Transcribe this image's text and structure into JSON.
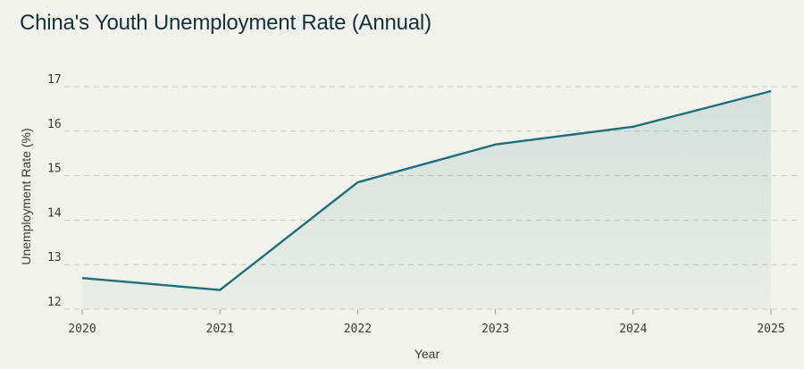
{
  "chart_data": {
    "type": "area",
    "title": "China's Youth Unemployment Rate (Annual)",
    "xlabel": "Year",
    "ylabel": "Unemployment Rate (%)",
    "x": [
      "2020",
      "2021",
      "2022",
      "2023",
      "2024",
      "2025"
    ],
    "values": [
      12.7,
      12.43,
      14.85,
      15.7,
      16.1,
      16.9
    ],
    "ylim": [
      11.8,
      17.2
    ],
    "yticks": [
      12,
      13,
      14,
      15,
      16,
      17
    ],
    "grid": true,
    "line_color": "#1c6f7c",
    "fill_color": "#1c6f7c"
  }
}
